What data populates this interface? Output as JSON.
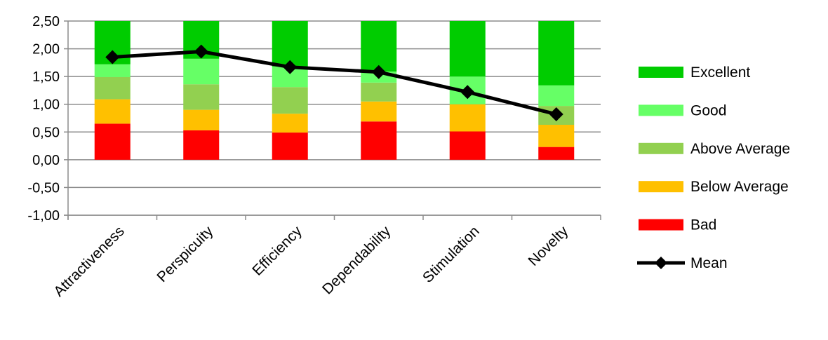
{
  "chart_data": {
    "type": "bar",
    "stacked": true,
    "categories": [
      "Attractiveness",
      "Perspicuity",
      "Efficiency",
      "Dependability",
      "Stimulation",
      "Novelty"
    ],
    "series": [
      {
        "name": "Bad",
        "color": "#ff0000",
        "values": [
          0.65,
          0.53,
          0.49,
          0.69,
          0.51,
          0.23
        ]
      },
      {
        "name": "Below Average",
        "color": "#ffc000",
        "values": [
          0.44,
          0.37,
          0.34,
          0.36,
          0.49,
          0.4
        ]
      },
      {
        "name": "Above Average",
        "color": "#92d050",
        "values": [
          0.4,
          0.46,
          0.48,
          0.34,
          0.0,
          0.34
        ]
      },
      {
        "name": "Good",
        "color": "#66ff66",
        "values": [
          0.23,
          0.46,
          0.37,
          0.2,
          0.5,
          0.37
        ]
      },
      {
        "name": "Excellent",
        "color": "#00cc00",
        "values": [
          0.78,
          0.68,
          0.82,
          0.91,
          1.0,
          1.16
        ]
      }
    ],
    "mean": {
      "name": "Mean",
      "color": "#000000",
      "values": [
        1.85,
        1.95,
        1.67,
        1.58,
        1.22,
        0.82
      ]
    },
    "ylim": [
      -1.0,
      2.5
    ],
    "yticks": [
      "2,50",
      "2,00",
      "1,50",
      "1,00",
      "0,50",
      "0,00",
      "-0,50",
      "-1,00"
    ],
    "ytick_values": [
      2.5,
      2.0,
      1.5,
      1.0,
      0.5,
      0.0,
      -0.5,
      -1.0
    ],
    "grid": true,
    "legend_placement": "right",
    "legend": [
      "Excellent",
      "Good",
      "Above Average",
      "Below Average",
      "Bad",
      "Mean"
    ]
  }
}
